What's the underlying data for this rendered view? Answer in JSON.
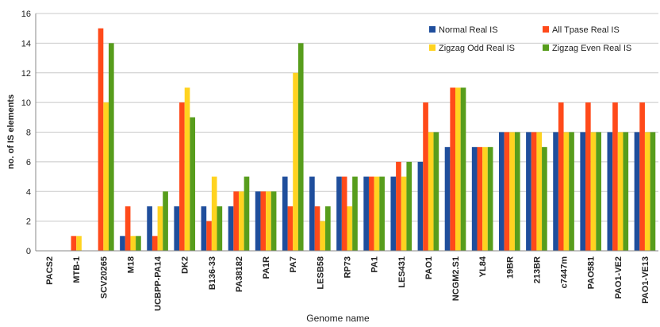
{
  "chart_data": {
    "type": "bar",
    "title": "",
    "xlabel": "Genome name",
    "ylabel": "no. of IS elements",
    "ylim": [
      0,
      16
    ],
    "yticks": [
      0,
      2,
      4,
      6,
      8,
      10,
      12,
      14,
      16
    ],
    "grid": true,
    "legend_position": "top-right",
    "categories": [
      "PACS2",
      "MTB-1",
      "SCV20265",
      "M18",
      "UCBPP-PA14",
      "DK2",
      "B136-33",
      "PA38182",
      "PA1R",
      "PA7",
      "LESB58",
      "RP73",
      "PA1",
      "LES431",
      "PAO1",
      "NCGM2.S1",
      "YL84",
      "19BR",
      "213BR",
      "c7447m",
      "PAO581",
      "PAO1-VE2",
      "PAO1-VE13"
    ],
    "series": [
      {
        "name": "Normal Real IS",
        "color": "#1f4e9c",
        "values": [
          0,
          0,
          0,
          1,
          3,
          3,
          3,
          3,
          4,
          5,
          5,
          5,
          5,
          5,
          6,
          7,
          7,
          8,
          8,
          8,
          8,
          8,
          8
        ]
      },
      {
        "name": "All Tpase Real IS",
        "color": "#ff4a1a",
        "values": [
          0,
          1,
          15,
          3,
          1,
          10,
          2,
          4,
          4,
          3,
          3,
          5,
          5,
          6,
          10,
          11,
          7,
          8,
          8,
          10,
          10,
          10,
          10
        ]
      },
      {
        "name": "Zigzag Odd Real IS",
        "color": "#ffd320",
        "values": [
          0,
          1,
          10,
          1,
          3,
          11,
          5,
          4,
          4,
          12,
          2,
          3,
          5,
          5,
          8,
          11,
          7,
          8,
          8,
          8,
          8,
          8,
          8
        ]
      },
      {
        "name": "Zigzag Even Real IS",
        "color": "#579d1c",
        "values": [
          0,
          0,
          14,
          1,
          4,
          9,
          3,
          5,
          4,
          14,
          3,
          5,
          5,
          6,
          8,
          11,
          7,
          8,
          7,
          8,
          8,
          8,
          8
        ]
      }
    ]
  }
}
